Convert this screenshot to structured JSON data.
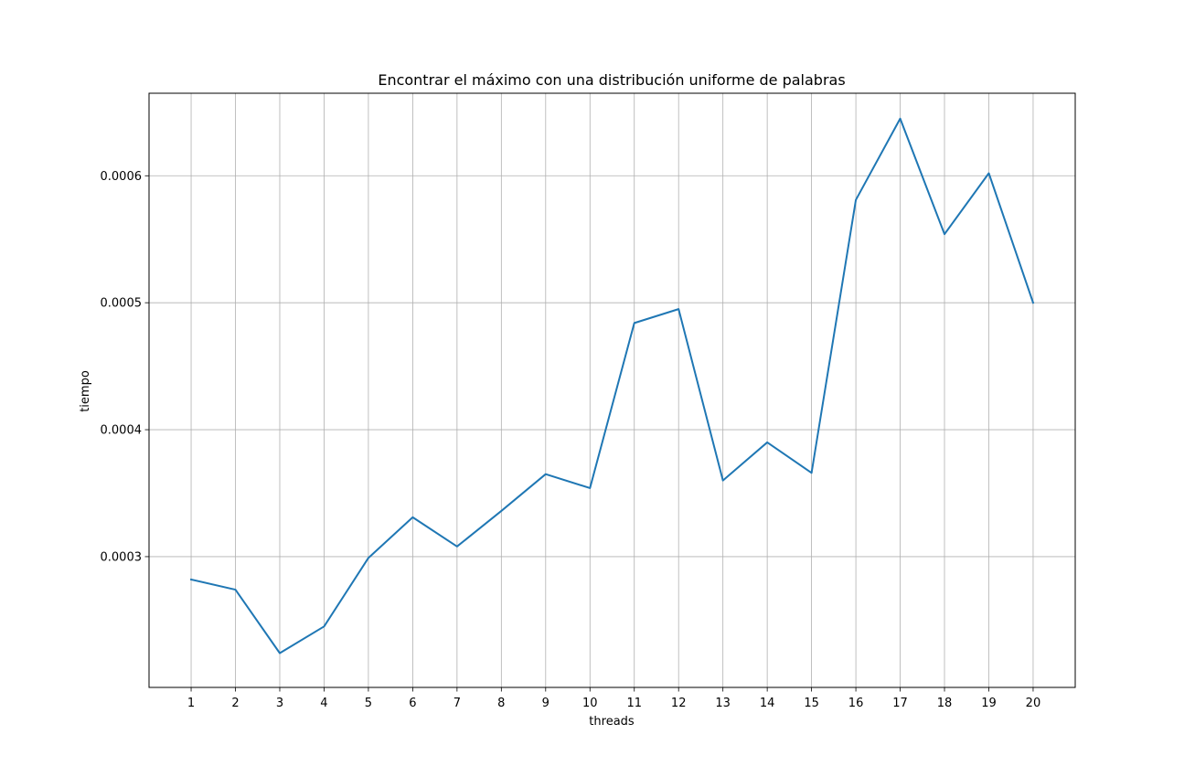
{
  "chart_data": {
    "type": "line",
    "title": "Encontrar el máximo con una distribución uniforme de palabras",
    "xlabel": "threads",
    "ylabel": "tiempo",
    "x": [
      1,
      2,
      3,
      4,
      5,
      6,
      7,
      8,
      9,
      10,
      11,
      12,
      13,
      14,
      15,
      16,
      17,
      18,
      19,
      20
    ],
    "x_tick_labels": [
      "1",
      "2",
      "3",
      "4",
      "5",
      "6",
      "7",
      "8",
      "9",
      "10",
      "11",
      "12",
      "13",
      "14",
      "15",
      "16",
      "17",
      "18",
      "19",
      "20"
    ],
    "y_ticks": [
      0.0003,
      0.0004,
      0.0005,
      0.0006
    ],
    "y_tick_labels": [
      "0.0003",
      "0.0004",
      "0.0005",
      "0.0006"
    ],
    "xlim": [
      0.05,
      20.95
    ],
    "ylim": [
      0.000197,
      0.000665
    ],
    "grid": true,
    "series": [
      {
        "color": "#1f77b4",
        "values": [
          0.000282,
          0.000274,
          0.000224,
          0.000245,
          0.000299,
          0.000331,
          0.000308,
          0.000336,
          0.000365,
          0.000354,
          0.000484,
          0.000495,
          0.00036,
          0.00039,
          0.000366,
          0.000581,
          0.000645,
          0.000554,
          0.000602,
          0.0005
        ]
      }
    ]
  }
}
